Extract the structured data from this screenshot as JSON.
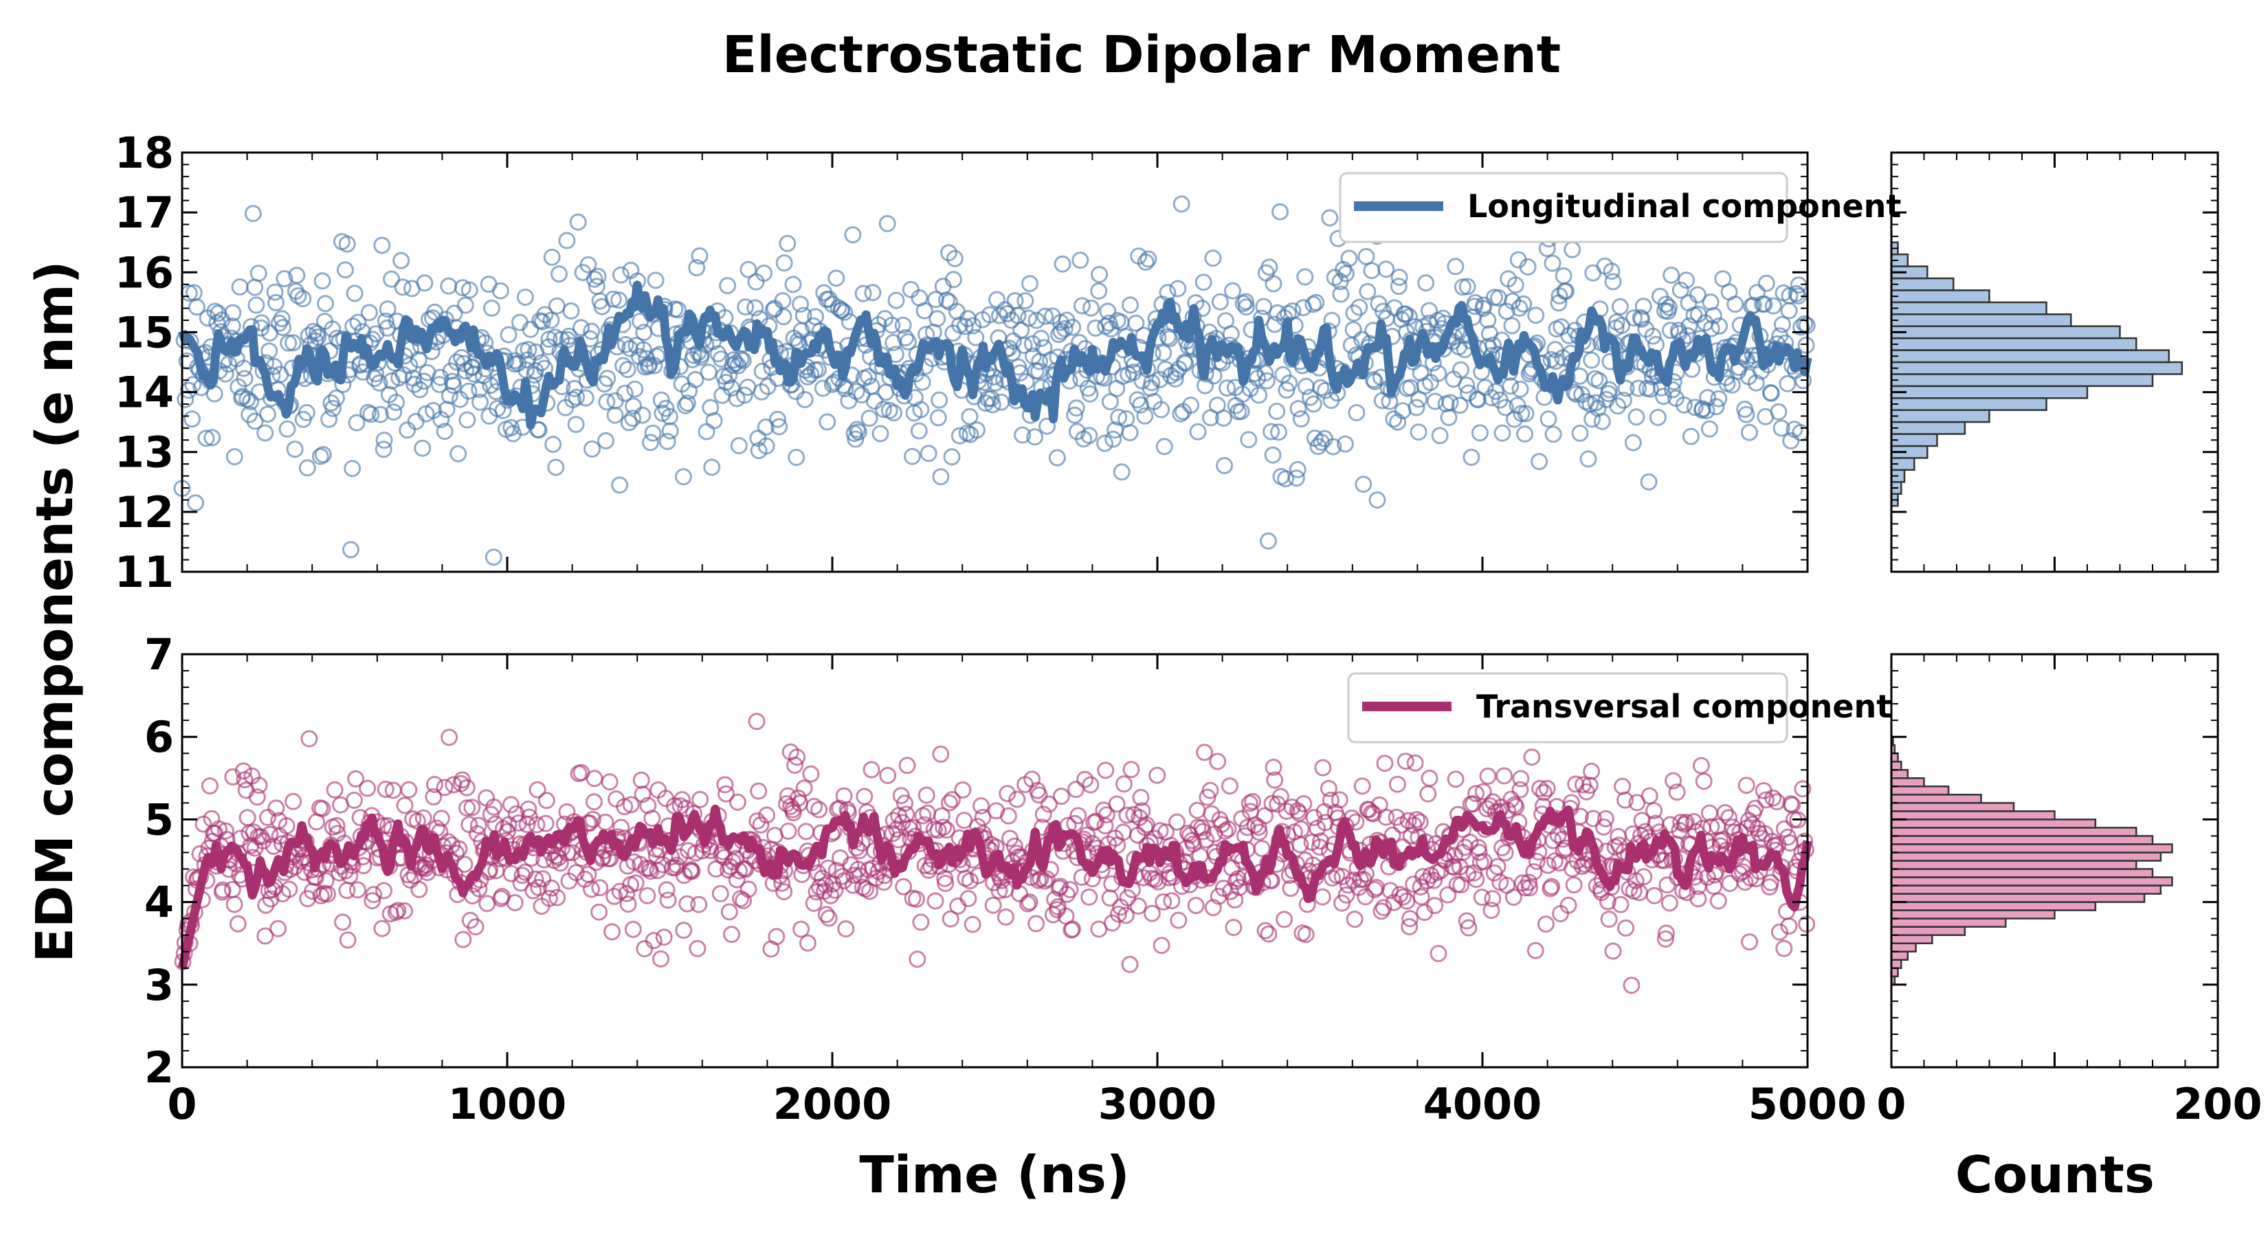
{
  "title": "Electrostatic Dipolar Moment",
  "ylabel": "EDM components (e nm)",
  "xlabel": "Time (ns)",
  "hist_xlabel": "Counts",
  "colors": {
    "longitudinal": "#4575a8",
    "longitudinal_hist": "#a9c4e2",
    "transversal": "#a8306f",
    "transversal_hist": "#e79fc0"
  },
  "chart_data": [
    {
      "type": "scatter",
      "panel": "top-time",
      "series": [
        {
          "name": "Longitudinal component",
          "mean": 14.6,
          "spread": 0.8
        }
      ],
      "xlim": [
        0,
        5000
      ],
      "ylim": [
        11,
        18
      ],
      "x_ticks": [
        0,
        1000,
        2000,
        3000,
        4000,
        5000
      ],
      "y_ticks": [
        11,
        12,
        13,
        14,
        15,
        16,
        17,
        18
      ],
      "legend": "top-right",
      "n_points": 1250
    },
    {
      "type": "scatter",
      "panel": "bottom-time",
      "series": [
        {
          "name": "Transversal component",
          "mean": 4.6,
          "spread": 0.45
        }
      ],
      "xlim": [
        0,
        5000
      ],
      "ylim": [
        2,
        7
      ],
      "x_ticks": [
        0,
        1000,
        2000,
        3000,
        4000,
        5000
      ],
      "y_ticks": [
        2,
        3,
        4,
        5,
        6,
        7
      ],
      "legend": "top-right",
      "n_points": 1250
    },
    {
      "type": "bar",
      "panel": "top-hist",
      "orientation": "horizontal",
      "xlim": [
        0,
        200
      ],
      "bin_starts": [
        12.1,
        12.3,
        12.5,
        12.7,
        12.9,
        13.1,
        13.3,
        13.5,
        13.7,
        13.9,
        14.1,
        14.3,
        14.5,
        14.7,
        14.9,
        15.1,
        15.3,
        15.5,
        15.7,
        15.9,
        16.1,
        16.3
      ],
      "bin_width": 0.2,
      "counts": [
        4,
        6,
        8,
        14,
        22,
        28,
        45,
        60,
        95,
        120,
        160,
        178,
        170,
        150,
        140,
        110,
        95,
        60,
        38,
        22,
        10,
        4
      ]
    },
    {
      "type": "bar",
      "panel": "bottom-hist",
      "orientation": "horizontal",
      "xlim": [
        0,
        200
      ],
      "x_ticks": [
        0,
        200
      ],
      "bin_starts": [
        3.0,
        3.1,
        3.2,
        3.3,
        3.4,
        3.5,
        3.6,
        3.7,
        3.8,
        3.9,
        4.0,
        4.1,
        4.2,
        4.3,
        4.4,
        4.5,
        4.6,
        4.7,
        4.8,
        4.9,
        5.0,
        5.1,
        5.2,
        5.3,
        5.4,
        5.5,
        5.6,
        5.7,
        5.8,
        5.9
      ],
      "bin_width": 0.1,
      "counts": [
        2,
        4,
        6,
        10,
        15,
        25,
        45,
        70,
        100,
        125,
        155,
        165,
        172,
        160,
        150,
        165,
        172,
        160,
        150,
        125,
        100,
        75,
        55,
        35,
        20,
        10,
        6,
        4,
        2,
        1
      ]
    }
  ]
}
